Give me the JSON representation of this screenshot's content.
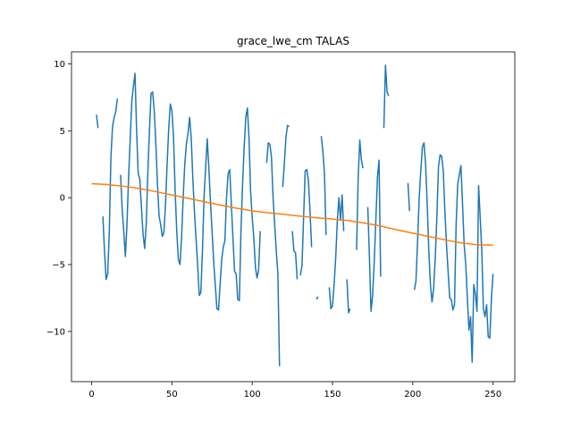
{
  "chart_data": {
    "type": "line",
    "title": "grace_lwe_cm TALAS",
    "xlabel": "",
    "ylabel": "",
    "xlim": [
      -12.55,
      263.55
    ],
    "ylim": [
      -13.75,
      10.9
    ],
    "xticks": [
      0,
      50,
      100,
      150,
      200,
      250
    ],
    "yticks": [
      -10,
      -5,
      0,
      5,
      10
    ],
    "xtick_labels": [
      "0",
      "50",
      "100",
      "150",
      "200",
      "250"
    ],
    "ytick_labels": [
      "−10",
      "−5",
      "0",
      "5",
      "10"
    ],
    "grid": false,
    "legend": "none",
    "series": [
      {
        "color": "#1f77b4",
        "points": [
          [
            3,
            6.2
          ],
          [
            4,
            5.2
          ],
          null,
          [
            7,
            -1.4
          ],
          [
            8,
            -4
          ],
          [
            9,
            -6.1
          ],
          [
            10,
            -5.7
          ],
          [
            11,
            -2.5
          ],
          [
            12,
            3.0
          ],
          [
            13,
            5.3
          ],
          [
            14,
            6.0
          ],
          [
            15,
            6.4
          ],
          [
            16,
            7.4
          ],
          null,
          [
            18,
            1.7
          ],
          [
            19,
            -0.8
          ],
          [
            20,
            -2.5
          ],
          [
            21,
            -4.4
          ],
          [
            22,
            -2.0
          ],
          [
            23,
            1.5
          ],
          [
            24,
            4.3
          ],
          [
            25,
            7.2
          ],
          [
            26,
            8.3
          ],
          [
            27,
            9.3
          ],
          [
            28,
            5.0
          ],
          [
            29,
            1.8
          ],
          [
            30,
            1.4
          ],
          [
            31,
            -0.7
          ],
          [
            32,
            -2.7
          ],
          [
            33,
            -3.8
          ],
          [
            34,
            -2.0
          ],
          [
            35,
            1.9
          ],
          [
            36,
            5.0
          ],
          [
            37,
            7.8
          ],
          [
            38,
            7.9
          ],
          [
            39,
            6.5
          ],
          [
            40,
            4.0
          ],
          [
            41,
            1.0
          ],
          [
            42,
            -1.4
          ],
          [
            43,
            -2.0
          ],
          [
            44,
            -2.9
          ],
          [
            45,
            -2.6
          ],
          [
            46,
            -0.5
          ],
          [
            47,
            2.5
          ],
          [
            48,
            5.2
          ],
          [
            49,
            7.0
          ],
          [
            50,
            6.5
          ],
          [
            51,
            4.5
          ],
          [
            52,
            0.5
          ],
          [
            53,
            -2.5
          ],
          [
            54,
            -4.6
          ],
          [
            55,
            -5.0
          ],
          [
            56,
            -3.0
          ],
          [
            57,
            0.0
          ],
          [
            58,
            2.5
          ],
          [
            59,
            4.0
          ],
          [
            60,
            4.8
          ],
          [
            61,
            6.0
          ],
          [
            62,
            4.5
          ],
          [
            63,
            1.5
          ],
          [
            64,
            -1.0
          ],
          [
            65,
            -3.0
          ],
          [
            66,
            -5.0
          ],
          [
            67,
            -7.3
          ],
          [
            68,
            -7.1
          ],
          [
            69,
            -4.0
          ],
          [
            70,
            0.0
          ],
          [
            71,
            2.3
          ],
          [
            72,
            4.4
          ],
          [
            73,
            2.2
          ],
          [
            74,
            -0.3
          ],
          [
            75,
            -2.5
          ],
          [
            76,
            -4.8
          ],
          [
            77,
            -6.5
          ],
          [
            78,
            -8.3
          ],
          [
            79,
            -8.4
          ],
          [
            80,
            -6.5
          ],
          [
            81,
            -4.6
          ],
          [
            82,
            -3.7
          ],
          [
            83,
            -3.2
          ],
          [
            84,
            0.0
          ],
          [
            85,
            1.8
          ],
          [
            86,
            2.1
          ],
          [
            87,
            -0.5
          ],
          [
            88,
            -3.0
          ],
          [
            89,
            -5.5
          ],
          [
            90,
            -5.7
          ],
          [
            91,
            -7.6
          ],
          [
            92,
            -7.7
          ],
          [
            93,
            -2.5
          ],
          [
            94,
            1.0
          ],
          [
            95,
            3.8
          ],
          [
            96,
            6.0
          ],
          [
            97,
            6.7
          ],
          [
            98,
            4.5
          ],
          [
            99,
            0.5
          ],
          [
            100,
            -1.5
          ],
          [
            101,
            -3.0
          ],
          [
            102,
            -5.2
          ],
          [
            103,
            -6.0
          ],
          [
            104,
            -5.4
          ],
          [
            105,
            -2.5
          ],
          null,
          [
            109,
            2.6
          ],
          [
            110,
            4.1
          ],
          [
            111,
            4.0
          ],
          [
            112,
            3.0
          ],
          [
            113,
            0.0
          ],
          [
            114,
            -2.0
          ],
          [
            115,
            -4.0
          ],
          [
            116,
            -5.7
          ],
          [
            117,
            -12.6
          ],
          null,
          [
            119,
            0.8
          ],
          [
            120,
            2.5
          ],
          [
            121,
            4.5
          ],
          [
            122,
            5.4
          ],
          [
            123,
            5.3
          ],
          null,
          [
            125,
            -2.5
          ],
          [
            126,
            -4.0
          ],
          [
            127,
            -4.1
          ],
          [
            128,
            -6.1
          ],
          null,
          [
            130,
            -5.8
          ],
          [
            131,
            -5.1
          ],
          [
            132,
            -1.5
          ],
          [
            133,
            2.0
          ],
          [
            134,
            2.1
          ],
          [
            135,
            1.3
          ],
          [
            136,
            -1.0
          ],
          [
            137,
            -3.7
          ],
          null,
          [
            140,
            -7.6
          ],
          [
            141,
            -7.4
          ],
          null,
          [
            143,
            4.6
          ],
          [
            144,
            3.5
          ],
          [
            145,
            1.8
          ],
          [
            146,
            -2.8
          ],
          null,
          [
            148,
            -6.7
          ],
          [
            149,
            -8.3
          ],
          [
            150,
            -8.1
          ],
          [
            151,
            -6.5
          ],
          [
            152,
            -4.5
          ],
          [
            153,
            -1.8
          ],
          [
            154,
            0.0
          ],
          [
            155,
            -1.7
          ],
          [
            156,
            0.2
          ],
          [
            157,
            -2.5
          ],
          null,
          [
            159,
            -6.1
          ],
          [
            160,
            -8.6
          ],
          [
            161,
            -8.3
          ],
          null,
          [
            165,
            -3.9
          ],
          [
            166,
            1.5
          ],
          [
            167,
            4.3
          ],
          [
            168,
            2.8
          ],
          [
            169,
            2.2
          ],
          null,
          [
            172,
            -0.7
          ],
          [
            173,
            -4.4
          ],
          [
            174,
            -8.5
          ],
          [
            175,
            -7.3
          ],
          [
            176,
            -4.8
          ],
          [
            177,
            -1.7
          ],
          [
            178,
            1.5
          ],
          [
            179,
            2.8
          ],
          [
            180,
            -5.9
          ],
          null,
          [
            182,
            5.2
          ],
          [
            183,
            9.9
          ],
          [
            184,
            7.9
          ],
          [
            185,
            7.6
          ],
          null,
          [
            197,
            1.1
          ],
          [
            198,
            -1.0
          ],
          null,
          [
            201,
            -6.9
          ],
          [
            202,
            -6.2
          ],
          [
            203,
            -3.3
          ],
          [
            204,
            0.0
          ],
          [
            205,
            2.0
          ],
          [
            206,
            3.8
          ],
          [
            207,
            4.1
          ],
          [
            208,
            2.5
          ],
          [
            209,
            -0.5
          ],
          [
            210,
            -4.0
          ],
          [
            211,
            -6.5
          ],
          [
            212,
            -7.8
          ],
          [
            213,
            -6.8
          ],
          [
            214,
            -4.5
          ],
          [
            215,
            -1.5
          ],
          [
            216,
            2.3
          ],
          [
            217,
            3.2
          ],
          [
            218,
            3.1
          ],
          [
            219,
            2.0
          ],
          [
            220,
            -1.0
          ],
          [
            221,
            -3.5
          ],
          [
            222,
            -5.5
          ],
          [
            223,
            -7.5
          ],
          [
            224,
            -7.6
          ],
          [
            225,
            -8.4
          ],
          [
            226,
            -8.0
          ],
          [
            227,
            -2.0
          ],
          [
            228,
            1.0
          ],
          [
            229,
            1.7
          ],
          [
            230,
            2.4
          ],
          [
            231,
            -0.5
          ],
          [
            232,
            -3.5
          ],
          [
            233,
            -5.0
          ],
          [
            234,
            -7.5
          ],
          [
            235,
            -9.9
          ],
          [
            236,
            -8.9
          ],
          [
            237,
            -12.3
          ],
          [
            238,
            -6.5
          ],
          [
            239,
            -7.2
          ],
          [
            240,
            -8.5
          ],
          [
            241,
            0.9
          ],
          [
            242,
            -1.5
          ],
          [
            243,
            -4.0
          ],
          [
            244,
            -8.3
          ],
          [
            245,
            -8.9
          ],
          [
            246,
            -8.0
          ],
          [
            247,
            -10.4
          ],
          [
            248,
            -10.5
          ],
          [
            249,
            -7.5
          ],
          [
            250,
            -5.7
          ]
        ]
      },
      {
        "color": "#ff7f0e",
        "points": [
          [
            0,
            1.05
          ],
          [
            10,
            0.98
          ],
          [
            20,
            0.85
          ],
          [
            30,
            0.68
          ],
          [
            40,
            0.45
          ],
          [
            50,
            0.2
          ],
          [
            60,
            -0.05
          ],
          [
            70,
            -0.3
          ],
          [
            80,
            -0.55
          ],
          [
            90,
            -0.78
          ],
          [
            100,
            -0.98
          ],
          [
            110,
            -1.13
          ],
          [
            120,
            -1.25
          ],
          [
            130,
            -1.38
          ],
          [
            140,
            -1.5
          ],
          [
            150,
            -1.6
          ],
          [
            160,
            -1.72
          ],
          [
            170,
            -1.9
          ],
          [
            180,
            -2.12
          ],
          [
            190,
            -2.4
          ],
          [
            200,
            -2.65
          ],
          [
            210,
            -2.9
          ],
          [
            220,
            -3.15
          ],
          [
            230,
            -3.38
          ],
          [
            240,
            -3.52
          ],
          [
            250,
            -3.55
          ]
        ]
      }
    ]
  }
}
